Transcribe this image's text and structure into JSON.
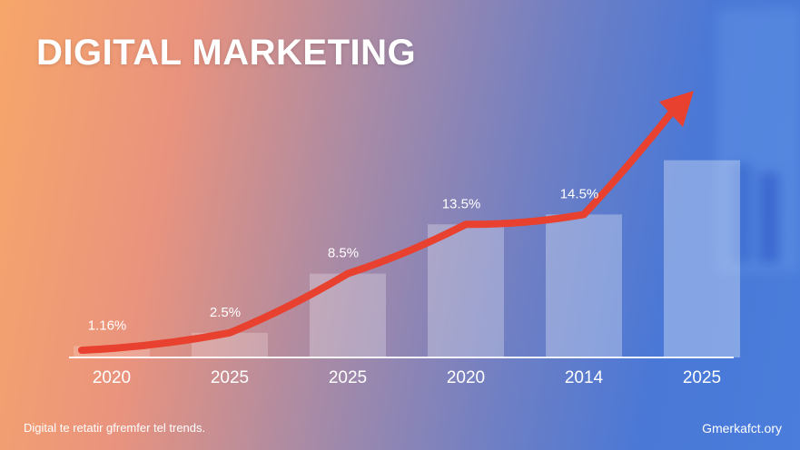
{
  "header": {
    "title": "DIGITAL MARKETING"
  },
  "chart_data": {
    "type": "bar",
    "categories": [
      "2020",
      "2025",
      "2025",
      "2020",
      "2014",
      "2025"
    ],
    "values": [
      1.16,
      2.5,
      8.5,
      13.5,
      14.5,
      20
    ],
    "data_labels": [
      "1.16%",
      "2.5%",
      "8.5%",
      "13.5%",
      "14.5%",
      ""
    ],
    "ylim": [
      0,
      23
    ],
    "grid": false,
    "trend_arrow": true,
    "colors": {
      "bar": "#ffffff",
      "arrow": "#e8412f",
      "baseline": "#ffffff"
    }
  },
  "footer": {
    "note": "Digital te retatir gfremfer tel trends.",
    "source": "Gmerkafct.ory"
  }
}
